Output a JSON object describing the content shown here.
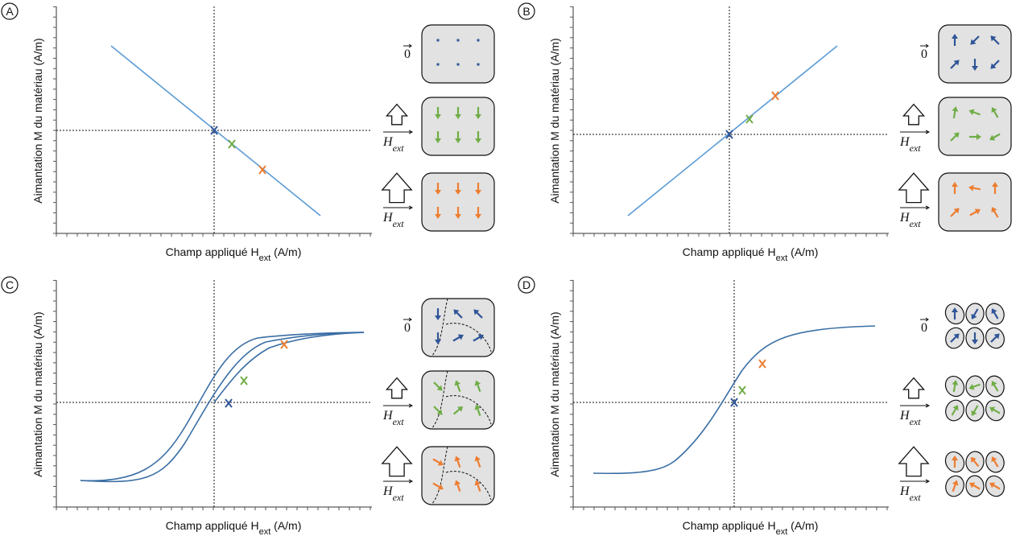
{
  "panels": [
    {
      "letter": "A",
      "y_label": "Aimantation M du matériau (A/m)",
      "x_label": {
        "text": "Champ appliqué H",
        "sub": "ext",
        "unit": " (A/m)"
      },
      "states": [
        {
          "text": "0"
        },
        {
          "text": "H",
          "sub": "ext"
        },
        {
          "text": "H",
          "sub": "ext"
        }
      ]
    },
    {
      "letter": "B",
      "y_label": "Aimantation M du matériau (A/m)",
      "x_label": {
        "text": "Champ appliqué H",
        "sub": "ext",
        "unit": " (A/m)"
      },
      "states": [
        {
          "text": "0"
        },
        {
          "text": "H",
          "sub": "ext"
        },
        {
          "text": "H",
          "sub": "ext"
        }
      ]
    },
    {
      "letter": "C",
      "y_label": "Aimantation M du matériau (A/m)",
      "x_label": {
        "text": "Champ appliqué H",
        "sub": "ext",
        "unit": " (A/m)"
      },
      "states": [
        {
          "text": "0"
        },
        {
          "text": "H",
          "sub": "ext"
        },
        {
          "text": "H",
          "sub": "ext"
        }
      ]
    },
    {
      "letter": "D",
      "y_label": "Aimantation M du matériau (A/m)",
      "x_label": {
        "text": "Champ appliqué H",
        "sub": "ext",
        "unit": " (A/m)"
      },
      "states": [
        {
          "text": "0"
        },
        {
          "text": "H",
          "sub": "ext"
        },
        {
          "text": "H",
          "sub": "ext"
        }
      ]
    }
  ]
}
